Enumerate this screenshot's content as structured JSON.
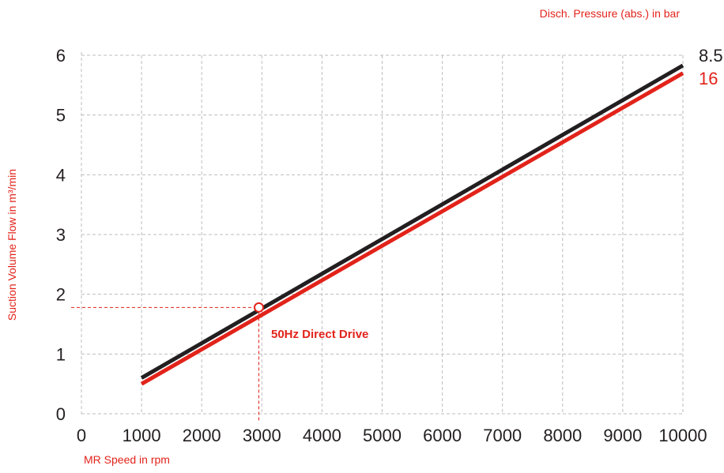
{
  "chart_data": {
    "type": "line",
    "xlabel": "MR Speed in rpm",
    "ylabel": "Suction Volume Flow in m³/min",
    "legend_title": "Disch. Pressure (abs.) in bar",
    "xlim": [
      0,
      10000
    ],
    "ylim": [
      0,
      6
    ],
    "x_ticks": [
      "0",
      "1000",
      "2000",
      "3000",
      "4000",
      "5000",
      "6000",
      "7000",
      "8000",
      "9000",
      "10000"
    ],
    "y_ticks": [
      "0",
      "1",
      "2",
      "3",
      "4",
      "5",
      "6"
    ],
    "grid": true,
    "legend_placement": "right end of lines",
    "series": [
      {
        "name": "8.5",
        "color": "#231f20",
        "x": [
          1000,
          10000
        ],
        "y": [
          0.6,
          5.83
        ]
      },
      {
        "name": "16",
        "color": "#e2231a",
        "x": [
          1000,
          10000
        ],
        "y": [
          0.5,
          5.7
        ]
      }
    ],
    "annotation": {
      "text": "50Hz Direct Drive",
      "x": 2950,
      "y": 1.78,
      "color": "#e2231a"
    }
  }
}
